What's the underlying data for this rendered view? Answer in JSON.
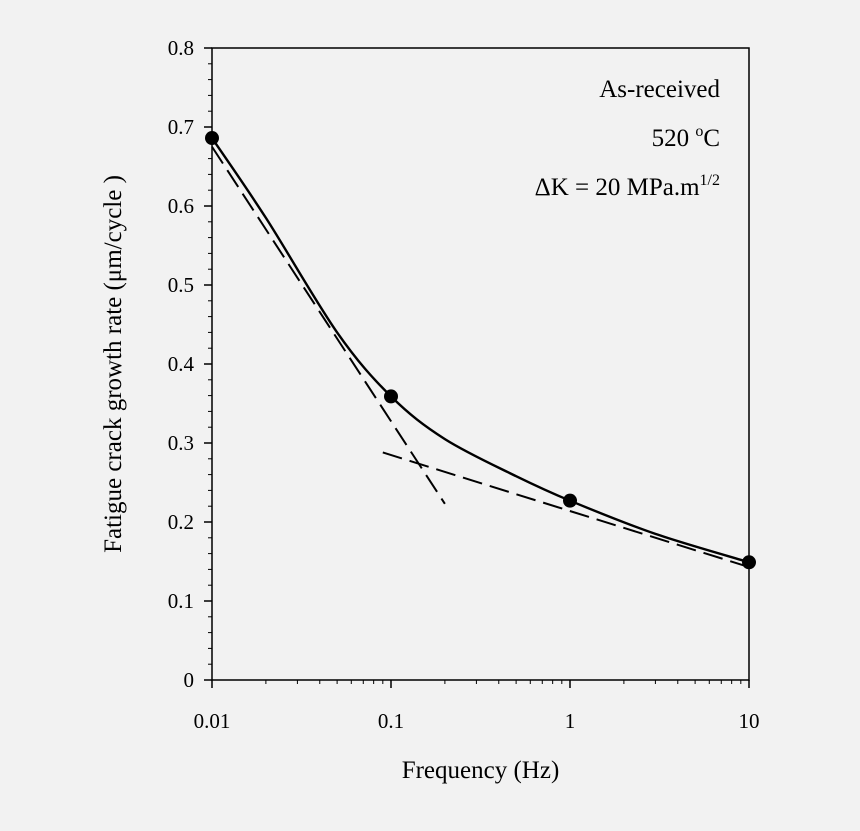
{
  "chart_data": {
    "type": "line",
    "xlabel": "Frequency (Hz)",
    "ylabel": "Fatigue crack growth rate (μm/cycle )",
    "xscale": "log",
    "xlim": [
      0.01,
      10
    ],
    "ylim": [
      0,
      0.8
    ],
    "x_ticks": [
      0.01,
      0.1,
      1,
      10
    ],
    "x_tick_labels": [
      "0.01",
      "0.1",
      "1",
      "10"
    ],
    "y_ticks": [
      0,
      0.1,
      0.2,
      0.3,
      0.4,
      0.5,
      0.6,
      0.7,
      0.8
    ],
    "y_tick_labels": [
      "0",
      "0.1",
      "0.2",
      "0.3",
      "0.4",
      "0.5",
      "0.6",
      "0.7",
      "0.8"
    ],
    "grid": false,
    "annotations": [
      "As-received",
      "520 °C",
      "ΔK = 20 MPa.m1/2"
    ],
    "annotation_parts": {
      "line1": "As-received",
      "line2_value": "520 ",
      "line2_sup": "o",
      "line2_unit": "C",
      "line3_main": "ΔK = 20 MPa.m",
      "line3_sup": "1/2"
    },
    "series": [
      {
        "style": "markers",
        "x": [
          0.01,
          0.1,
          1,
          10
        ],
        "y": [
          0.686,
          0.359,
          0.227,
          0.149
        ]
      },
      {
        "style": "solid-smooth",
        "x": [
          0.01,
          0.02,
          0.05,
          0.1,
          0.2,
          0.5,
          1,
          3,
          10
        ],
        "y": [
          0.686,
          0.585,
          0.44,
          0.359,
          0.305,
          0.258,
          0.227,
          0.185,
          0.149
        ]
      },
      {
        "style": "dashed",
        "x": [
          0.01,
          0.2
        ],
        "y": [
          0.675,
          0.223
        ]
      },
      {
        "style": "dashed",
        "x": [
          0.09,
          10
        ],
        "y": [
          0.288,
          0.143
        ]
      }
    ]
  }
}
